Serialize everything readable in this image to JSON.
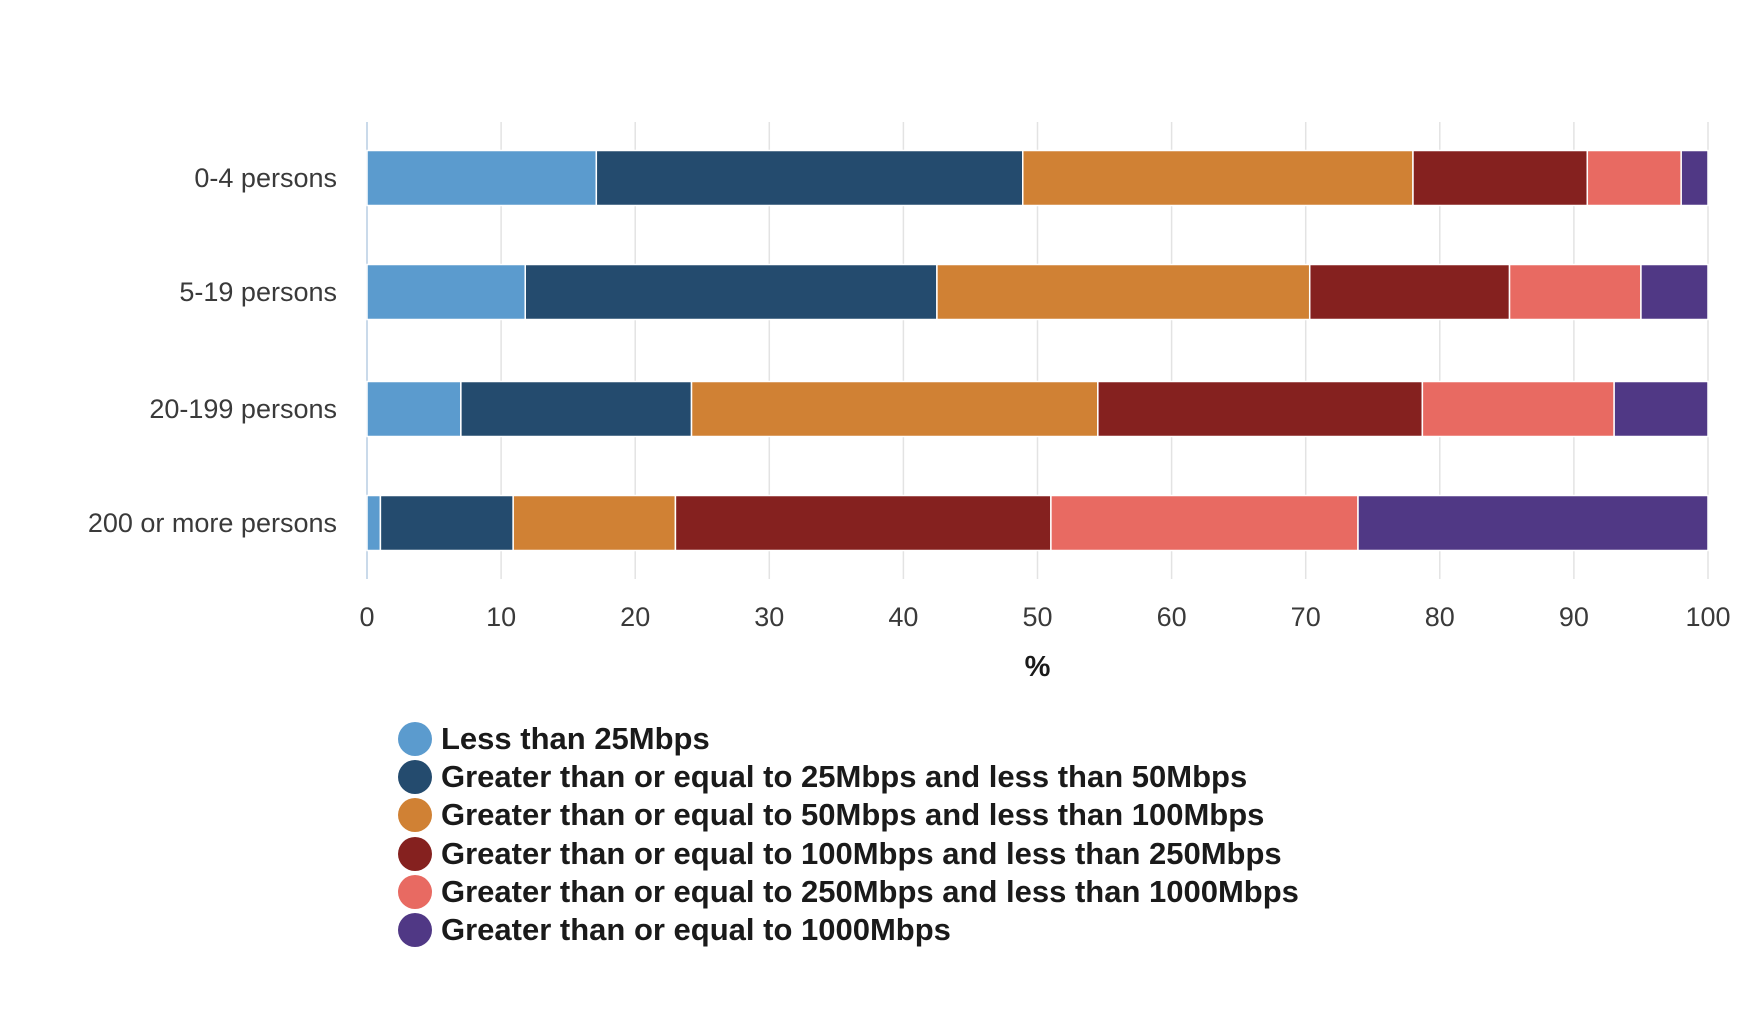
{
  "chart_data": {
    "type": "bar",
    "orientation": "horizontal",
    "stacked": true,
    "title": "",
    "xlabel": "%",
    "ylabel": "",
    "xlim": [
      0,
      100
    ],
    "xticks": [
      0,
      10,
      20,
      30,
      40,
      50,
      60,
      70,
      80,
      90,
      100
    ],
    "grid": true,
    "legend_position": "bottom",
    "categories": [
      "0-4 persons",
      "5-19 persons",
      "20-199 persons",
      "200 or more persons"
    ],
    "series": [
      {
        "name": "Less than 25Mbps",
        "color": "#5b9bce",
        "values": [
          17.1,
          11.8,
          7.0,
          1.0
        ]
      },
      {
        "name": "Greater than or equal to 25Mbps and less than 50Mbps",
        "color": "#244b6e",
        "values": [
          31.8,
          30.7,
          17.2,
          9.9
        ]
      },
      {
        "name": "Greater than or equal to 50Mbps and less than 100Mbps",
        "color": "#d08134",
        "values": [
          29.1,
          27.8,
          30.3,
          12.1
        ]
      },
      {
        "name": "Greater than or equal to 100Mbps and less than 250Mbps",
        "color": "#85211f",
        "values": [
          13.0,
          14.9,
          24.2,
          28.0
        ]
      },
      {
        "name": "Greater than or equal to 250Mbps and less than 1000Mbps",
        "color": "#e86a62",
        "values": [
          7.0,
          9.8,
          14.3,
          22.9
        ]
      },
      {
        "name": "Greater than or equal to 1000Mbps",
        "color": "#503885",
        "values": [
          2.0,
          5.0,
          7.0,
          26.1
        ]
      }
    ]
  }
}
